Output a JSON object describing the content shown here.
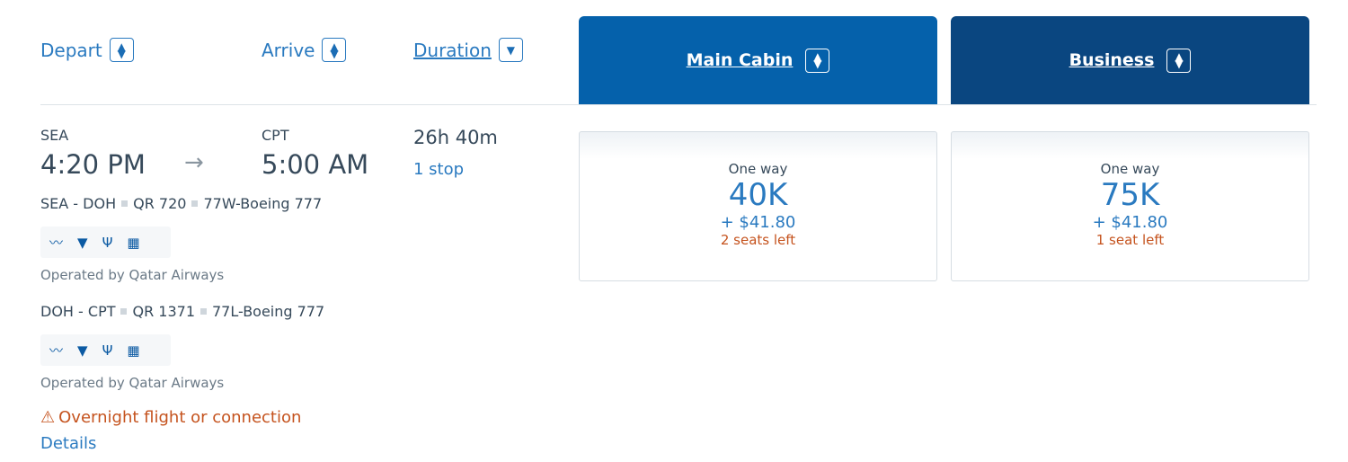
{
  "sort_headers": {
    "depart": "Depart",
    "arrive": "Arrive",
    "duration": "Duration"
  },
  "cabins": [
    {
      "label": "Main Cabin",
      "color": "#0561ab",
      "fare_label": "One way",
      "miles": "40K",
      "fee": "+ $41.80",
      "seats": "2 seats left"
    },
    {
      "label": "Business",
      "color": "#0a4680",
      "fare_label": "One way",
      "miles": "75K",
      "fee": "+ $41.80",
      "seats": "1 seat left"
    }
  ],
  "flight": {
    "origin": "SEA",
    "depart_time": "4:20 PM",
    "destination": "CPT",
    "arrive_time": "5:00 AM",
    "duration": "26h 40m",
    "stops": "1 stop",
    "legs": [
      {
        "route": "SEA - DOH",
        "flight": "QR 720",
        "aircraft": "77W-Boeing 777",
        "operator": "Operated by Qatar Airways",
        "amenities": [
          "wifi-icon",
          "power-icon",
          "usb-icon",
          "entertainment-icon"
        ]
      },
      {
        "route": "DOH - CPT",
        "flight": "QR 1371",
        "aircraft": "77L-Boeing 777",
        "operator": "Operated by Qatar Airways",
        "amenities": [
          "wifi-icon",
          "power-icon",
          "usb-icon",
          "entertainment-icon"
        ]
      }
    ],
    "warning": "Overnight flight or connection",
    "details": "Details"
  },
  "colors": {
    "link": "#2a7ac0",
    "warning": "#c5531e"
  }
}
